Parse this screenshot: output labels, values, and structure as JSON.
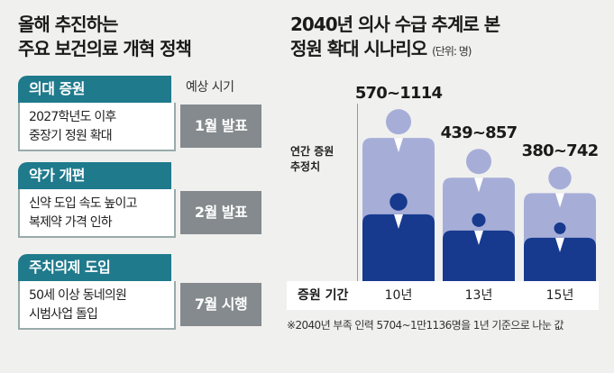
{
  "left": {
    "title_line1": "올해 추진하는",
    "title_line2": "주요 보건의료 개혁 정책",
    "header_note": "예상 시기",
    "items": [
      {
        "category": "의대 증원",
        "description_line1": "2027학년도 이후",
        "description_line2": "중장기 정원 확대",
        "timing": "1월 발표"
      },
      {
        "category": "약가 개편",
        "description_line1": "신약 도입 속도 높이고",
        "description_line2": "복제약 가격 인하",
        "timing": "2월 발표"
      },
      {
        "category": "주치의제 도입",
        "description_line1": "50세 이상 동네의원",
        "description_line2": "시범사업 돌입",
        "timing": "7월 시행"
      }
    ]
  },
  "chart_data": {
    "type": "bar",
    "title_line1": "2040년 의사 수급 추계로 본",
    "title_line2": "정원 확대 시나리오",
    "unit": "(단위: 명)",
    "ylabel_line1": "연간 증원",
    "ylabel_line2": "추정치",
    "xlabel": "증원 기간",
    "categories": [
      "10년",
      "13년",
      "15년"
    ],
    "range_labels": [
      "570~1114",
      "439~857",
      "380~742"
    ],
    "series": [
      {
        "values": [
          1114,
          857,
          742
        ],
        "color": "#a6aed8"
      },
      {
        "values": [
          570,
          439,
          380
        ],
        "color": "#173a8f"
      }
    ],
    "ylim": [
      0,
      1150
    ],
    "footnote": "※2040년 부족 인력 5704~1만1136명을 1년 기준으로 나눈 값"
  }
}
